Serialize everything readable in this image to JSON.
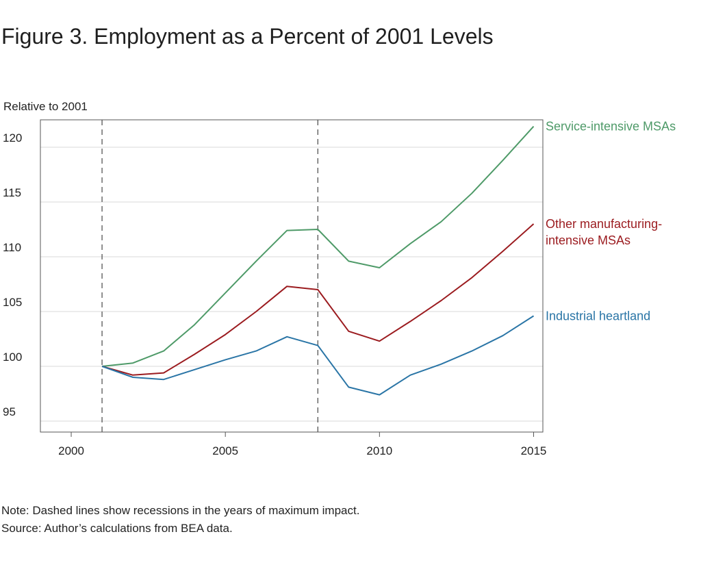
{
  "chart_data": {
    "type": "line",
    "title": "Figure 3. Employment as a Percent of 2001 Levels",
    "ylabel": "Relative to 2001",
    "xlabel": "",
    "xlim": [
      1999,
      2015.3
    ],
    "ylim": [
      94,
      122.5
    ],
    "xticks": [
      2000,
      2005,
      2010,
      2015
    ],
    "yticks": [
      95,
      100,
      105,
      110,
      115,
      120
    ],
    "grid": "horizontal",
    "recessions": [
      2001,
      2008
    ],
    "series": [
      {
        "name": "Service-intensive MSAs",
        "label_lines": [
          "Service-intensive MSAs"
        ],
        "color": "#4e9a68",
        "x": [
          2001,
          2002,
          2003,
          2004,
          2005,
          2006,
          2007,
          2008,
          2009,
          2010,
          2011,
          2012,
          2013,
          2014,
          2015
        ],
        "values": [
          100.0,
          100.3,
          101.4,
          103.8,
          106.7,
          109.6,
          112.4,
          112.5,
          109.6,
          109.0,
          111.2,
          113.2,
          115.8,
          118.8,
          121.9
        ]
      },
      {
        "name": "Other manufacturing-intensive MSAs",
        "label_lines": [
          "Other manufacturing-",
          "intensive MSAs"
        ],
        "color": "#9b1b1f",
        "x": [
          2001,
          2002,
          2003,
          2004,
          2005,
          2006,
          2007,
          2008,
          2009,
          2010,
          2011,
          2012,
          2013,
          2014,
          2015
        ],
        "values": [
          100.0,
          99.2,
          99.4,
          101.1,
          102.9,
          105.0,
          107.3,
          107.0,
          103.2,
          102.3,
          104.1,
          106.0,
          108.1,
          110.5,
          113.0
        ]
      },
      {
        "name": "Industrial heartland",
        "label_lines": [
          "Industrial heartland"
        ],
        "color": "#2a75a6",
        "x": [
          2001,
          2002,
          2003,
          2004,
          2005,
          2006,
          2007,
          2008,
          2009,
          2010,
          2011,
          2012,
          2013,
          2014,
          2015
        ],
        "values": [
          100.0,
          99.0,
          98.8,
          99.7,
          100.6,
          101.4,
          102.7,
          101.9,
          98.1,
          97.4,
          99.2,
          100.2,
          101.4,
          102.8,
          104.6
        ]
      }
    ]
  },
  "footnotes": {
    "note": "Note: Dashed lines show recessions in the years of maximum impact.",
    "source": "Source: Author’s calculations from BEA data."
  }
}
